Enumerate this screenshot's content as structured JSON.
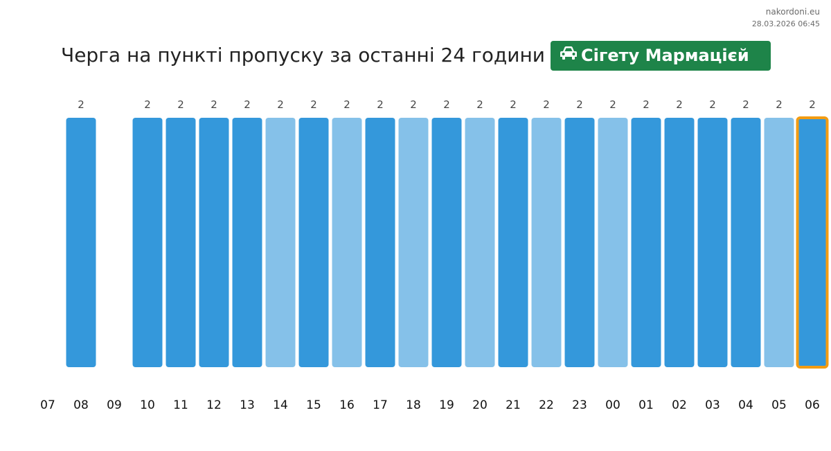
{
  "site": {
    "name": "nakordoni.eu",
    "date": "28.03.2026 06:45"
  },
  "header": {
    "title": "Черга на пункті пропуску за останні 24 години",
    "checkpoint": "Сігету Мармацієй",
    "checkpoint_icon": "car-icon",
    "badge_color": "#1e8449"
  },
  "chart_data": {
    "type": "bar",
    "title": "Черга на пункті пропуску за останні 24 години",
    "xlabel": "",
    "ylabel": "",
    "ylim": [
      0,
      2
    ],
    "grid": false,
    "categories": [
      "07",
      "08",
      "09",
      "10",
      "11",
      "12",
      "13",
      "14",
      "15",
      "16",
      "17",
      "18",
      "19",
      "20",
      "21",
      "22",
      "23",
      "00",
      "01",
      "02",
      "03",
      "04",
      "05",
      "06"
    ],
    "values": [
      null,
      2,
      null,
      2,
      2,
      2,
      2,
      2,
      2,
      2,
      2,
      2,
      2,
      2,
      2,
      2,
      2,
      2,
      2,
      2,
      2,
      2,
      2,
      2
    ],
    "shades": [
      "",
      "dark",
      "",
      "dark",
      "dark",
      "dark",
      "dark",
      "light",
      "dark",
      "light",
      "dark",
      "light",
      "dark",
      "light",
      "dark",
      "light",
      "dark",
      "light",
      "dark",
      "dark",
      "dark",
      "dark",
      "light",
      "dark"
    ],
    "highlight_index": 23,
    "colors": {
      "dark": "#3498db",
      "light": "#85c1e9",
      "highlight_border": "#f39c12"
    }
  }
}
